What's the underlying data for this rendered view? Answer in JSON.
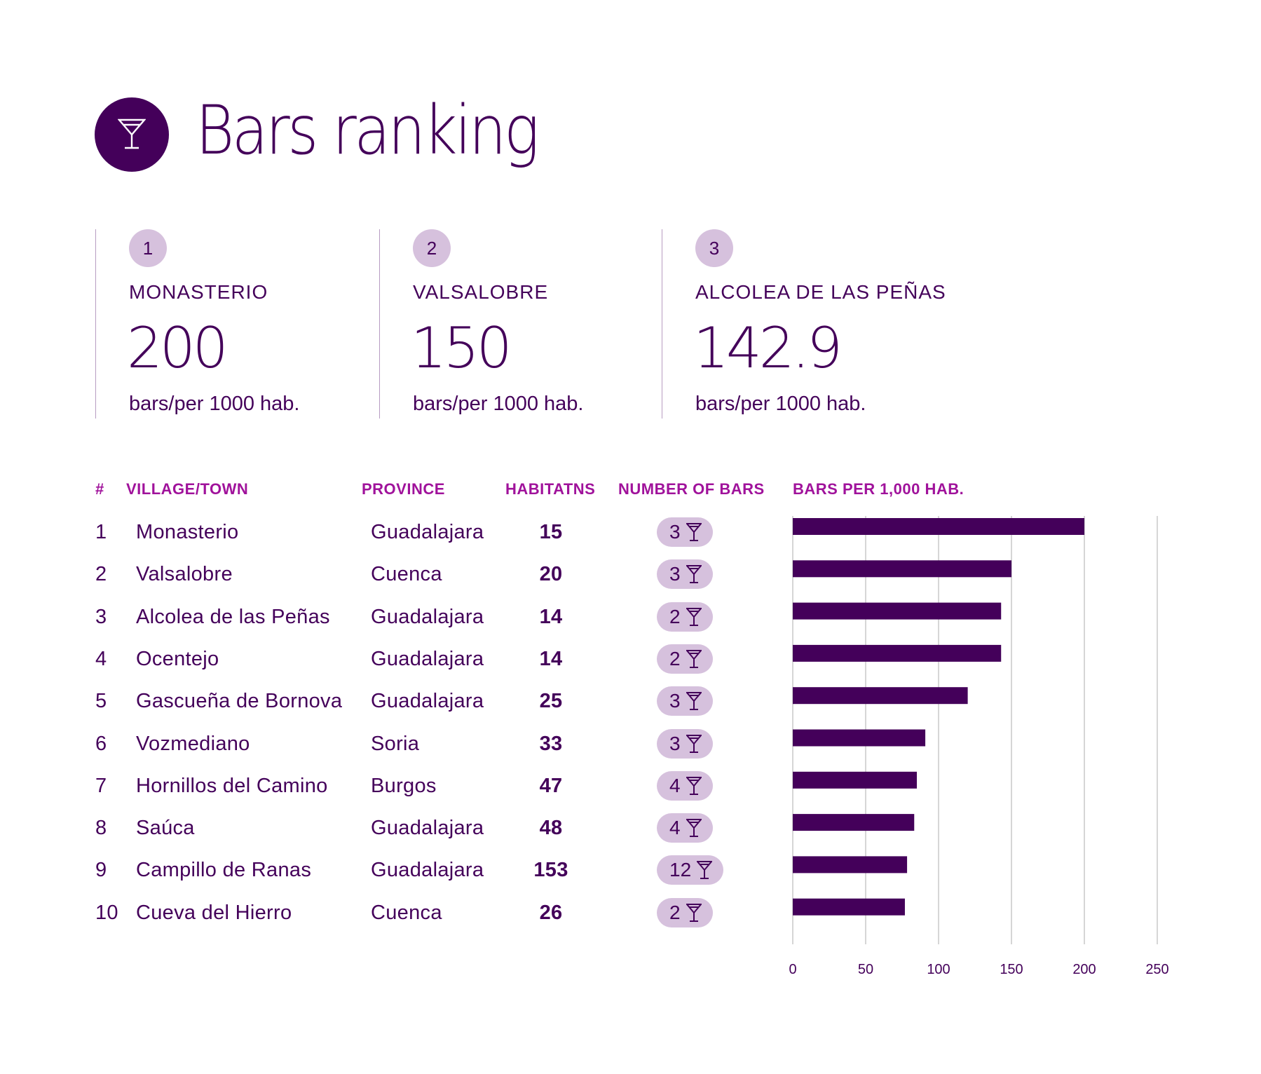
{
  "header": {
    "title": "Bars ranking",
    "icon": "martini-glass-icon"
  },
  "podium": [
    {
      "rank": "1",
      "name": "MONASTERIO",
      "value": "200",
      "unit": "bars/per 1000 hab."
    },
    {
      "rank": "2",
      "name": "VALSALOBRE",
      "value": "150",
      "unit": "bars/per 1000 hab."
    },
    {
      "rank": "3",
      "name": "ALCOLEA DE LAS PEÑAS",
      "value": "142.9",
      "unit": "bars/per 1000 hab."
    }
  ],
  "table": {
    "headers": {
      "rank": "#",
      "village": "VILLAGE/TOWN",
      "province": "PROVINCE",
      "habitants": "HABITATNS",
      "bars": "NUMBER OF BARS",
      "per_1000": "BARS PER 1,000 HAB."
    },
    "rows": [
      {
        "rank": "1",
        "village": "Monasterio",
        "province": "Guadalajara",
        "habitants": "15",
        "bars": "3"
      },
      {
        "rank": "2",
        "village": "Valsalobre",
        "province": "Cuenca",
        "habitants": "20",
        "bars": "3"
      },
      {
        "rank": "3",
        "village": "Alcolea de las Peñas",
        "province": "Guadalajara",
        "habitants": "14",
        "bars": "2"
      },
      {
        "rank": "4",
        "village": "Ocentejo",
        "province": "Guadalajara",
        "habitants": "14",
        "bars": "2"
      },
      {
        "rank": "5",
        "village": "Gascueña de Bornova",
        "province": "Guadalajara",
        "habitants": "25",
        "bars": "3"
      },
      {
        "rank": "6",
        "village": "Vozmediano",
        "province": "Soria",
        "habitants": "33",
        "bars": "3"
      },
      {
        "rank": "7",
        "village": "Hornillos del Camino",
        "province": "Burgos",
        "habitants": "47",
        "bars": "4"
      },
      {
        "rank": "8",
        "village": "Saúca",
        "province": "Guadalajara",
        "habitants": "48",
        "bars": "4"
      },
      {
        "rank": "9",
        "village": "Campillo de Ranas",
        "province": "Guadalajara",
        "habitants": "153",
        "bars": "12"
      },
      {
        "rank": "10",
        "village": "Cueva del Hierro",
        "province": "Cuenca",
        "habitants": "26",
        "bars": "2"
      }
    ]
  },
  "colors": {
    "primary": "#44005a",
    "accent": "#a0129b",
    "pill": "#d6c1dd",
    "grid": "#c8c8c8"
  },
  "chart_data": {
    "type": "bar",
    "orientation": "horizontal",
    "title": "BARS PER 1,000 HAB.",
    "xlabel": "",
    "ylabel": "",
    "categories": [
      "Monasterio",
      "Valsalobre",
      "Alcolea de las Peñas",
      "Ocentejo",
      "Gascueña de Bornova",
      "Vozmediano",
      "Hornillos del Camino",
      "Saúca",
      "Campillo de Ranas",
      "Cueva del Hierro"
    ],
    "values": [
      200,
      150,
      142.9,
      142.9,
      120,
      90.9,
      85.1,
      83.3,
      78.4,
      76.9
    ],
    "xlim": [
      0,
      250
    ],
    "xticks": [
      0,
      50,
      100,
      150,
      200,
      250
    ],
    "xtick_labels": [
      "0",
      "50",
      "100",
      "150",
      "200",
      "250"
    ],
    "grid": true,
    "legend": "none"
  }
}
